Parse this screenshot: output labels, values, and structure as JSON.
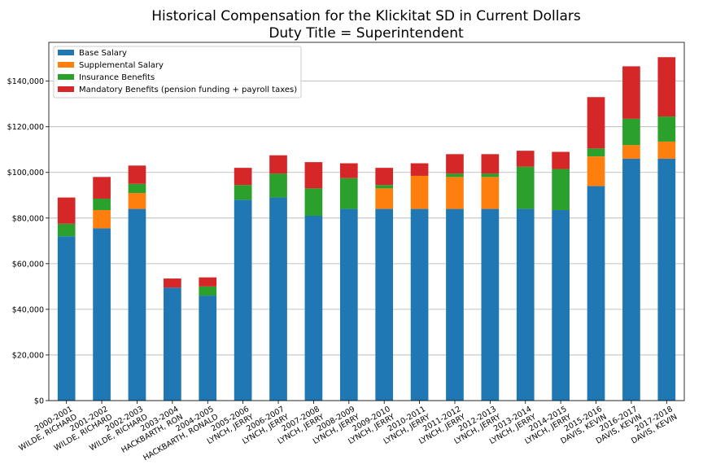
{
  "chart_data": {
    "type": "bar",
    "stacked": true,
    "title": "Historical Compensation for the Klickitat SD in Current Dollars",
    "subtitle": "Duty Title = Superintendent",
    "xlabel": "",
    "ylabel": "",
    "ylim": [
      0,
      157000
    ],
    "y_ticks": [
      0,
      20000,
      40000,
      60000,
      80000,
      100000,
      120000,
      140000
    ],
    "y_tick_labels": [
      "$0",
      "$20,000",
      "$40,000",
      "$60,000",
      "$80,000",
      "$100,000",
      "$120,000",
      "$140,000"
    ],
    "grid": "horizontal",
    "legend_position": "top-left",
    "categories": [
      [
        "2000-2001",
        "WILDE, RICHARD"
      ],
      [
        "2001-2002",
        "WILDE, RICHARD"
      ],
      [
        "2002-2003",
        "WILDE, RICHARD"
      ],
      [
        "2003-2004",
        "HACKBARTH, RON"
      ],
      [
        "2004-2005",
        "HACKBARTH, RONALD"
      ],
      [
        "2005-2006",
        "LYNCH, JERRY"
      ],
      [
        "2006-2007",
        "LYNCH, JERRY"
      ],
      [
        "2007-2008",
        "LYNCH, JERRY"
      ],
      [
        "2008-2009",
        "LYNCH, JERRY"
      ],
      [
        "2009-2010",
        "LYNCH, JERRY"
      ],
      [
        "2010-2011",
        "LYNCH, JERRY"
      ],
      [
        "2011-2012",
        "LYNCH, JERRY"
      ],
      [
        "2012-2013",
        "LYNCH, JERRY"
      ],
      [
        "2013-2014",
        "LYNCH, JERRY"
      ],
      [
        "2014-2015",
        "LYNCH, JERRY"
      ],
      [
        "2015-2016",
        "DAVIS, KEVIN"
      ],
      [
        "2016-2017",
        "DAVIS, KEVIN"
      ],
      [
        "2017-2018",
        "DAVIS, KEVIN"
      ]
    ],
    "series": [
      {
        "name": "Base Salary",
        "color": "#1f77b4",
        "values": [
          72000,
          75500,
          84000,
          49500,
          46000,
          88000,
          89000,
          81000,
          84000,
          84000,
          84000,
          84000,
          84000,
          84000,
          83500,
          94000,
          106000,
          106000
        ]
      },
      {
        "name": "Supplemental Salary",
        "color": "#ff7f0e",
        "values": [
          0,
          8000,
          7000,
          0,
          0,
          0,
          0,
          0,
          0,
          9000,
          14500,
          14000,
          14000,
          0,
          0,
          13000,
          6000,
          7500
        ]
      },
      {
        "name": "Insurance Benefits",
        "color": "#2ca02c",
        "values": [
          5500,
          5000,
          4000,
          0,
          4000,
          6500,
          10500,
          12000,
          13500,
          1500,
          0,
          1500,
          1500,
          18500,
          18000,
          3500,
          11500,
          11000
        ]
      },
      {
        "name": "Mandatory Benefits (pension funding + payroll taxes)",
        "color": "#d62728",
        "values": [
          11500,
          9500,
          8000,
          4000,
          4000,
          7500,
          8000,
          11500,
          6500,
          7500,
          5500,
          8500,
          8500,
          7000,
          7500,
          22500,
          23000,
          26000
        ]
      }
    ]
  }
}
